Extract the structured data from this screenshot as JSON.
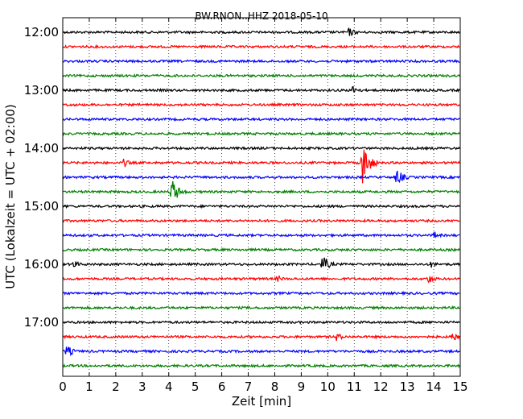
{
  "chart_data": {
    "type": "line",
    "title": "BW.RNON..HHZ 2018-05-10",
    "xlabel": "Zeit  [min]",
    "ylabel": "UTC (Lokalzeit = UTC + 02:00)",
    "xlim": [
      0,
      15
    ],
    "x_ticks": [
      "0",
      "1",
      "2",
      "3",
      "4",
      "5",
      "6",
      "7",
      "8",
      "9",
      "10",
      "11",
      "12",
      "13",
      "14",
      "15"
    ],
    "y_ticks": [
      "12:00",
      "13:00",
      "14:00",
      "15:00",
      "16:00",
      "17:00"
    ],
    "grid": "vertical dotted",
    "trace_interval_minutes": 15,
    "colors": [
      "#000000",
      "#ff0000",
      "#0000ff",
      "#008000"
    ],
    "traces": [
      {
        "start": "12:00",
        "events": [
          {
            "x": 10.8,
            "amp": 0.35
          }
        ]
      },
      {
        "start": "12:15",
        "events": []
      },
      {
        "start": "12:30",
        "events": []
      },
      {
        "start": "12:45",
        "events": []
      },
      {
        "start": "13:00",
        "events": [
          {
            "x": 10.95,
            "amp": 0.35
          }
        ]
      },
      {
        "start": "13:15",
        "events": []
      },
      {
        "start": "13:30",
        "events": []
      },
      {
        "start": "13:45",
        "events": []
      },
      {
        "start": "14:00",
        "events": []
      },
      {
        "start": "14:15",
        "events": [
          {
            "x": 2.3,
            "amp": 0.3
          },
          {
            "x": 11.3,
            "amp": 1.6
          }
        ]
      },
      {
        "start": "14:30",
        "events": [
          {
            "x": 12.6,
            "amp": 0.6
          }
        ]
      },
      {
        "start": "14:45",
        "events": [
          {
            "x": 4.1,
            "amp": 1.0
          }
        ]
      },
      {
        "start": "15:00",
        "events": []
      },
      {
        "start": "15:15",
        "events": []
      },
      {
        "start": "15:30",
        "events": [
          {
            "x": 14.0,
            "amp": 0.3
          }
        ]
      },
      {
        "start": "15:45",
        "events": []
      },
      {
        "start": "16:00",
        "events": [
          {
            "x": 0.4,
            "amp": 0.3
          },
          {
            "x": 9.8,
            "amp": 0.6
          },
          {
            "x": 13.9,
            "amp": 0.25
          }
        ]
      },
      {
        "start": "16:15",
        "events": [
          {
            "x": 8.1,
            "amp": 0.25
          },
          {
            "x": 13.8,
            "amp": 0.35
          }
        ]
      },
      {
        "start": "16:30",
        "events": []
      },
      {
        "start": "16:45",
        "events": []
      },
      {
        "start": "17:00",
        "events": []
      },
      {
        "start": "17:15",
        "events": [
          {
            "x": 10.3,
            "amp": 0.35
          },
          {
            "x": 14.7,
            "amp": 0.35
          }
        ]
      },
      {
        "start": "17:30",
        "events": [
          {
            "x": 0.15,
            "amp": 0.45
          }
        ]
      },
      {
        "start": "17:45",
        "events": []
      }
    ]
  }
}
